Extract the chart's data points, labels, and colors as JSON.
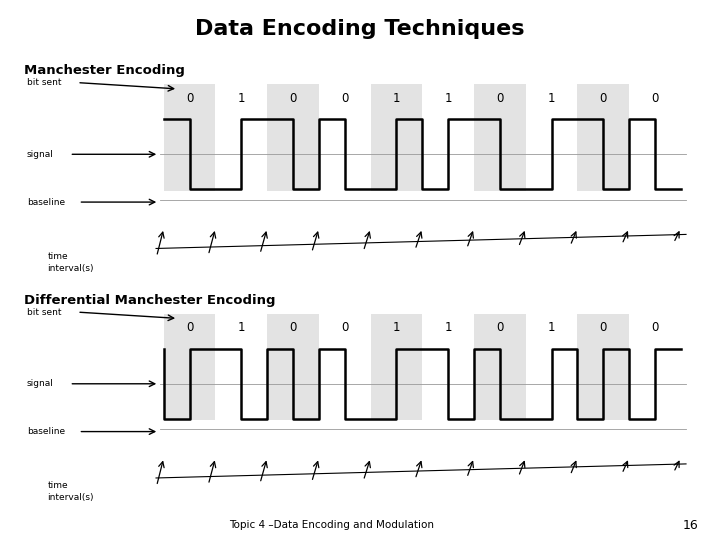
{
  "title": "Data Encoding Techniques",
  "title_fontsize": 16,
  "title_fontweight": "bold",
  "bits": [
    0,
    1,
    0,
    0,
    1,
    1,
    0,
    1,
    0,
    0
  ],
  "manchester_subtitle": "Manchester Encoding",
  "diff_subtitle": "Differential Manchester Encoding",
  "footer_text": "Topic 4 –Data Encoding and Modulation",
  "page_number": "16",
  "bg_color": "#ffffff",
  "signal_color": "#000000",
  "shade_color": "#d8d8d8",
  "shade_alpha": 0.7,
  "label_fontsize": 6.5,
  "bit_fontsize": 8.5,
  "subtitle_fontsize": 9.5,
  "subtitle_fontweight": "bold",
  "signal_lw": 1.8,
  "high": 1.0,
  "low": 0.0
}
